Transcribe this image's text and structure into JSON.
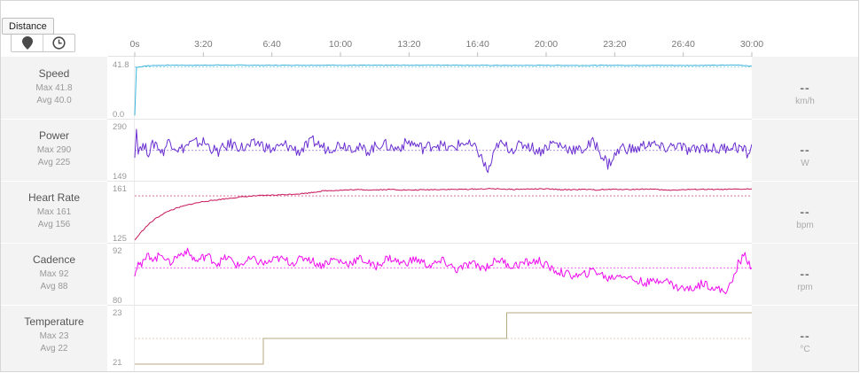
{
  "tooltip": "Distance",
  "toggle": {
    "distance_icon": "map-pin-icon",
    "time_icon": "clock-icon",
    "selected": "time"
  },
  "time_axis": {
    "ticks": [
      "0s",
      "3:20",
      "6:40",
      "10:00",
      "13:20",
      "16:40",
      "20:00",
      "23:20",
      "26:40",
      "30:00"
    ],
    "tick_seconds": [
      0,
      200,
      400,
      600,
      800,
      1000,
      1200,
      1400,
      1600,
      1800
    ]
  },
  "colors": {
    "speed": "#3ab4dc",
    "power": "#6a2fd0",
    "heart_rate": "#c8145a",
    "cadence": "#ee0cee",
    "temperature": "#b6aa82",
    "panel_bg": "#f3f3f3"
  },
  "metrics": [
    {
      "key": "speed",
      "label": "Speed",
      "max": "Max 41.8",
      "avg": "Avg 40.0",
      "axis_top": "41.8",
      "axis_bottom": "0.0",
      "current": "--",
      "unit": "km/h"
    },
    {
      "key": "power",
      "label": "Power",
      "max": "Max 290",
      "avg": "Avg 225",
      "axis_top": "290",
      "axis_bottom": "149",
      "current": "--",
      "unit": "W"
    },
    {
      "key": "heart_rate",
      "label": "Heart Rate",
      "max": "Max 161",
      "avg": "Avg 156",
      "axis_top": "161",
      "axis_bottom": "125",
      "current": "--",
      "unit": "bpm"
    },
    {
      "key": "cadence",
      "label": "Cadence",
      "max": "Max 92",
      "avg": "Avg 88",
      "axis_top": "92",
      "axis_bottom": "80",
      "current": "--",
      "unit": "rpm"
    },
    {
      "key": "temperature",
      "label": "Temperature",
      "max": "Max 23",
      "avg": "Avg 22",
      "axis_top": "23",
      "axis_bottom": "21",
      "current": "--",
      "unit": "°C"
    }
  ],
  "chart_data": [
    {
      "type": "line",
      "name": "Speed",
      "x_unit": "s",
      "xlim": [
        0,
        1800
      ],
      "ylim": [
        0,
        41.8
      ],
      "avg": 40.0,
      "unit": "km/h",
      "x": [
        0,
        5,
        30,
        60,
        90,
        120,
        180,
        240,
        300,
        400,
        500,
        600,
        700,
        800,
        900,
        1000,
        1100,
        1200,
        1300,
        1400,
        1500,
        1600,
        1700,
        1760,
        1790,
        1800
      ],
      "y": [
        0.5,
        39.5,
        40.8,
        41.2,
        41.3,
        41.4,
        41.3,
        41.5,
        41.4,
        41.3,
        41.4,
        41.4,
        41.3,
        41.4,
        41.5,
        41.3,
        41.2,
        41.3,
        41.2,
        41.3,
        41.3,
        41.2,
        41.3,
        41.6,
        40.8,
        40.4
      ]
    },
    {
      "type": "line",
      "name": "Power",
      "x_unit": "s",
      "xlim": [
        0,
        1800
      ],
      "ylim": [
        149,
        290
      ],
      "avg": 225,
      "unit": "W",
      "x": [
        0,
        5,
        10,
        20,
        40,
        60,
        80,
        100,
        130,
        160,
        200,
        240,
        280,
        320,
        360,
        400,
        440,
        480,
        520,
        560,
        600,
        640,
        680,
        720,
        760,
        800,
        840,
        880,
        920,
        960,
        1000,
        1030,
        1060,
        1100,
        1140,
        1180,
        1220,
        1260,
        1300,
        1340,
        1380,
        1420,
        1460,
        1500,
        1540,
        1580,
        1620,
        1660,
        1700,
        1740,
        1770,
        1790,
        1800
      ],
      "y": [
        205,
        283,
        230,
        240,
        222,
        248,
        218,
        252,
        226,
        243,
        248,
        220,
        243,
        231,
        246,
        226,
        240,
        222,
        250,
        229,
        242,
        234,
        224,
        244,
        229,
        248,
        231,
        243,
        228,
        247,
        226,
        166,
        244,
        229,
        243,
        222,
        246,
        232,
        224,
        248,
        186,
        234,
        226,
        246,
        229,
        240,
        222,
        236,
        226,
        238,
        230,
        214,
        242
      ]
    },
    {
      "type": "line",
      "name": "Heart Rate",
      "x_unit": "s",
      "xlim": [
        0,
        1800
      ],
      "ylim": [
        125,
        161
      ],
      "avg": 156,
      "unit": "bpm",
      "x": [
        0,
        20,
        40,
        60,
        80,
        100,
        130,
        160,
        200,
        250,
        300,
        350,
        400,
        450,
        500,
        550,
        600,
        650,
        700,
        750,
        800,
        850,
        900,
        950,
        1000,
        1050,
        1100,
        1150,
        1200,
        1250,
        1300,
        1350,
        1400,
        1450,
        1500,
        1550,
        1600,
        1650,
        1700,
        1750,
        1800
      ],
      "y": [
        125,
        131,
        136,
        140,
        143,
        145.5,
        148,
        150,
        152,
        153.5,
        155,
        156,
        156.5,
        157,
        157.8,
        159.5,
        160,
        160.3,
        160.2,
        160.5,
        160,
        160.3,
        160.5,
        160.5,
        160.8,
        161,
        160.5,
        160.8,
        160.8,
        160.3,
        160.5,
        160.2,
        160.6,
        160.5,
        160.8,
        160,
        160.3,
        160.6,
        160.4,
        160.6,
        160.8
      ]
    },
    {
      "type": "line",
      "name": "Cadence",
      "x_unit": "s",
      "xlim": [
        0,
        1800
      ],
      "ylim": [
        80,
        92
      ],
      "avg": 88,
      "unit": "rpm",
      "x": [
        0,
        10,
        20,
        40,
        60,
        80,
        100,
        120,
        150,
        180,
        210,
        240,
        270,
        300,
        340,
        380,
        420,
        460,
        500,
        540,
        580,
        620,
        660,
        700,
        740,
        780,
        820,
        860,
        900,
        940,
        980,
        1020,
        1060,
        1100,
        1140,
        1180,
        1220,
        1260,
        1300,
        1340,
        1380,
        1420,
        1460,
        1500,
        1540,
        1580,
        1620,
        1660,
        1700,
        1720,
        1740,
        1760,
        1780,
        1800
      ],
      "y": [
        86,
        90,
        88.5,
        91,
        90,
        91.5,
        89,
        90.5,
        92,
        89.5,
        91,
        89,
        90.5,
        88.5,
        90,
        89,
        90.2,
        89.2,
        90.5,
        88.6,
        90,
        89,
        90.2,
        88.2,
        90.4,
        89,
        90,
        88.5,
        89.6,
        87.5,
        89,
        88,
        90,
        88.4,
        89.2,
        89.6,
        87.5,
        86.5,
        86,
        87.5,
        85.5,
        86.5,
        85,
        84.5,
        85.5,
        83.5,
        83,
        84.5,
        83,
        82.5,
        84,
        89,
        91,
        88
      ]
    },
    {
      "type": "line",
      "name": "Temperature",
      "x_unit": "s",
      "xlim": [
        0,
        1800
      ],
      "ylim": [
        21,
        23
      ],
      "avg": 22,
      "unit": "°C",
      "step": true,
      "x": [
        0,
        375,
        375,
        1085,
        1085,
        1800
      ],
      "y": [
        21,
        21,
        22,
        22,
        23,
        23
      ]
    }
  ]
}
